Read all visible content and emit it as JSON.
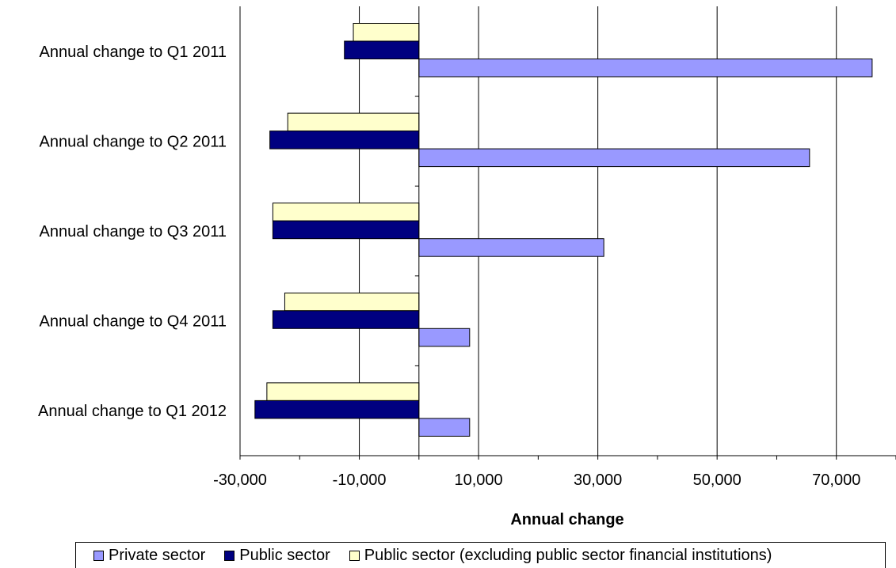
{
  "chart_data": {
    "type": "bar",
    "orientation": "horizontal",
    "categories": [
      "Annual change to Q1 2011",
      "Annual change to Q2 2011",
      "Annual change to Q3 2011",
      "Annual change to Q4 2011",
      "Annual change to Q1 2012"
    ],
    "series": [
      {
        "name": "Public sector (excluding public sector financial institutions)",
        "color": "#ffffcc",
        "values": [
          -11000,
          -22000,
          -24500,
          -22500,
          -25500
        ]
      },
      {
        "name": "Public sector",
        "color": "#000080",
        "values": [
          -12500,
          -25000,
          -24500,
          -24500,
          -27500
        ]
      },
      {
        "name": "Private sector",
        "color": "#9999ff",
        "values": [
          76000,
          65500,
          31000,
          8500,
          8500
        ]
      }
    ],
    "legend_order": [
      "Private sector",
      "Public sector",
      "Public sector (excluding public sector financial institutions)"
    ],
    "xlabel": "Annual change",
    "xlim": [
      -30000,
      80000
    ],
    "xticks": [
      -30000,
      -10000,
      10000,
      30000,
      50000,
      70000
    ],
    "xtick_labels": [
      "-30,000",
      "-10,000",
      "10,000",
      "30,000",
      "50,000",
      "70,000"
    ],
    "grid": "vertical",
    "legend_position": "bottom"
  }
}
